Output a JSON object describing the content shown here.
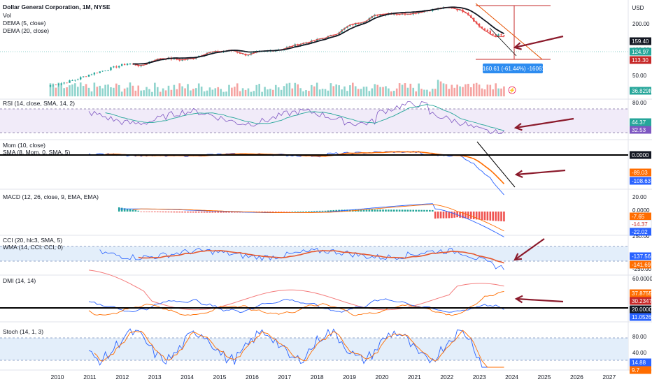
{
  "header": {
    "title": "Dollar General Corporation, 1M, NYSE",
    "legend": [
      "Vol",
      "DEMA (5, close)",
      "DEMA (20, close)"
    ],
    "currency": "USD"
  },
  "measure_label": "-160.61 (-61.44%) -16061",
  "colors": {
    "up": "#26a69a",
    "down": "#ef5350",
    "dema5": "#e04848",
    "dema20": "#131722",
    "blue": "#2962ff",
    "orange": "#ff6d00",
    "arrow": "#8b1a2b"
  },
  "chart_data": [
    {
      "type": "candlestick",
      "title": "Dollar General Corporation, 1M, NYSE",
      "x": [
        "2010",
        "2011",
        "2012",
        "2013",
        "2014",
        "2015",
        "2016",
        "2017",
        "2018",
        "2019",
        "2020",
        "2021",
        "2022",
        "2023",
        "2024",
        "2025",
        "2026",
        "2027"
      ],
      "axis_ticks": [
        "200.00",
        "100.00",
        "50.00"
      ],
      "price_badges": [
        {
          "text": "159.40",
          "style": "dark"
        },
        {
          "text": "124.97",
          "style": "teal"
        },
        {
          "text": "113.30",
          "style": "red"
        }
      ],
      "series": [
        {
          "name": "DEMA (5, close)"
        },
        {
          "name": "DEMA (20, close)"
        }
      ],
      "close_2010_2024": [
        28,
        30,
        33,
        38,
        42,
        47,
        52,
        48,
        58,
        60,
        57,
        60,
        70,
        72,
        75,
        66,
        71,
        74,
        79,
        88,
        95,
        105,
        118,
        150,
        165,
        200,
        212,
        208,
        215,
        230,
        245,
        248,
        222,
        150,
        118,
        113
      ]
    },
    {
      "type": "bar",
      "title": "Vol",
      "badges": [
        {
          "text": "36.829M",
          "style": "teal"
        }
      ]
    },
    {
      "type": "line",
      "title": "RSI (14, close, SMA, 14, 2)",
      "axis_ticks": [
        "80.00"
      ],
      "badges": [
        {
          "text": "44.37",
          "style": "teal"
        },
        {
          "text": "32.53",
          "style": "purple"
        }
      ]
    },
    {
      "type": "line",
      "title": "Mom (10, close)",
      "subtitle": "SMA (8, Mom, 0, SMA, 5)",
      "badges": [
        {
          "text": "0.0000",
          "style": "dark"
        },
        {
          "text": "-89.03",
          "style": "orange"
        },
        {
          "text": "-108.63",
          "style": "blue"
        }
      ]
    },
    {
      "type": "line",
      "title": "MACD (12, 26, close, 9, EMA, EMA)",
      "axis_ticks": [
        "20.00",
        "0.0000"
      ],
      "badges": [
        {
          "text": "-7.65",
          "style": "orange"
        },
        {
          "text": "-14.37",
          "style": "white"
        },
        {
          "text": "-22.02",
          "style": "blue"
        }
      ]
    },
    {
      "type": "line",
      "title": "CCI (20, hlc3, SMA, 5)",
      "subtitle": "WMA (14, CCI: CCI, 0)",
      "axis_ticks": [
        "250.00",
        "-250.00"
      ],
      "badges": [
        {
          "text": "-137.56",
          "style": "blue"
        },
        {
          "text": "-141.69",
          "style": "orange"
        }
      ]
    },
    {
      "type": "line",
      "title": "DMI (14, 14)",
      "axis_ticks": [
        "60.0000"
      ],
      "badges": [
        {
          "text": "37.8755",
          "style": "orange"
        },
        {
          "text": "30.2347",
          "style": "red"
        },
        {
          "text": "20.0000",
          "style": "dark"
        },
        {
          "text": "11.0526",
          "style": "blue"
        }
      ]
    },
    {
      "type": "line",
      "title": "Stoch (14, 1, 3)",
      "axis_ticks": [
        "80.00",
        "40.00"
      ],
      "badges": [
        {
          "text": "14.88",
          "style": "blue"
        },
        {
          "text": "9.7",
          "style": "orange"
        }
      ]
    }
  ]
}
